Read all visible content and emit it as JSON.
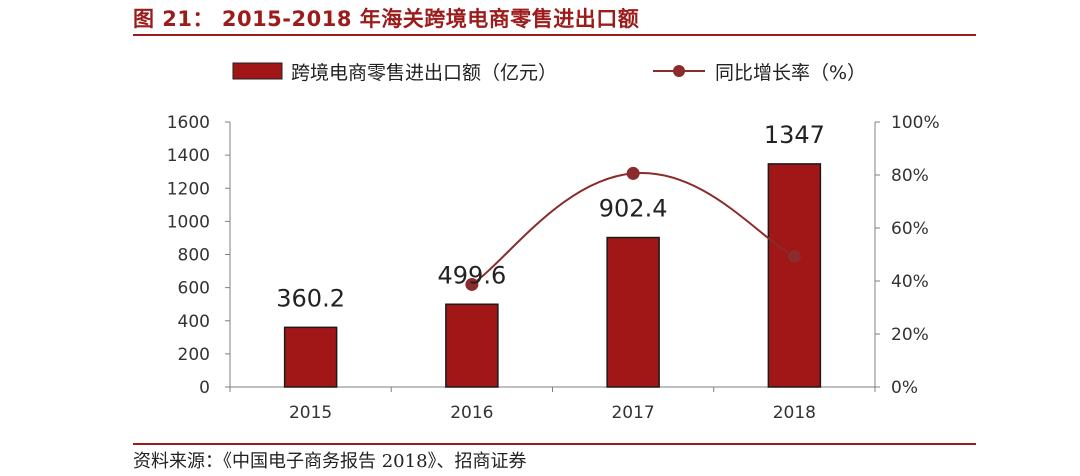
{
  "figure": {
    "title": "图 21：  2015-2018 年海关跨境电商零售进出口额",
    "source": "资料来源：《中国电子商务报告 2018》、招商证券"
  },
  "colors": {
    "bar": "#a11717",
    "line": "#8b2b2b",
    "title": "#9c1b1b",
    "axis": "#808080"
  },
  "chart_data": {
    "type": "bar",
    "categories": [
      "2015",
      "2016",
      "2017",
      "2018"
    ],
    "series": [
      {
        "name": "跨境电商零售进出口额（亿元）",
        "type": "bar",
        "axis": "left",
        "values": [
          360.2,
          499.6,
          902.4,
          1347
        ],
        "labels": [
          "360.2",
          "499.6",
          "902.4",
          "1347"
        ]
      },
      {
        "name": "同比增长率（%）",
        "type": "line",
        "axis": "right",
        "values": [
          null,
          38.7,
          80.6,
          49.3
        ]
      }
    ],
    "y_left": {
      "min": 0,
      "max": 1600,
      "ticks": [
        "0",
        "200",
        "400",
        "600",
        "800",
        "1000",
        "1200",
        "1400",
        "1600"
      ]
    },
    "y_right": {
      "min": 0,
      "max": 100,
      "ticks": [
        "0%",
        "20%",
        "40%",
        "60%",
        "80%",
        "100%"
      ]
    },
    "legend_position": "top",
    "grid": false
  }
}
